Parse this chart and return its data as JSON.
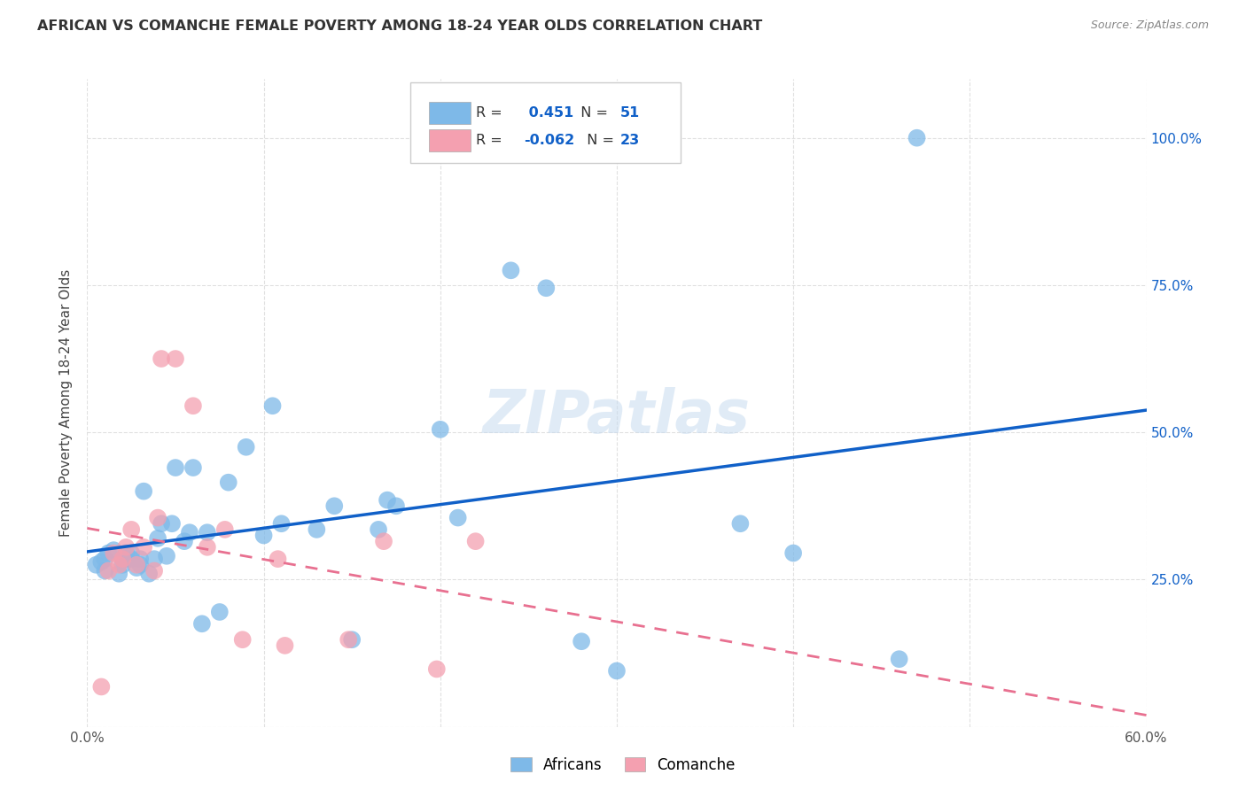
{
  "title": "AFRICAN VS COMANCHE FEMALE POVERTY AMONG 18-24 YEAR OLDS CORRELATION CHART",
  "source": "Source: ZipAtlas.com",
  "ylabel": "Female Poverty Among 18-24 Year Olds",
  "xlim": [
    0.0,
    0.6
  ],
  "ylim": [
    0.0,
    1.1
  ],
  "xticks": [
    0.0,
    0.1,
    0.2,
    0.3,
    0.4,
    0.5,
    0.6
  ],
  "xticklabels": [
    "0.0%",
    "",
    "",
    "",
    "",
    "",
    "60.0%"
  ],
  "yticks_right": [
    0.0,
    0.25,
    0.5,
    0.75,
    1.0
  ],
  "yticklabels_right": [
    "",
    "25.0%",
    "50.0%",
    "75.0%",
    "100.0%"
  ],
  "african_R": 0.451,
  "african_N": 51,
  "comanche_R": -0.062,
  "comanche_N": 23,
  "african_color": "#7EB9E8",
  "comanche_color": "#F4A0B0",
  "african_line_color": "#1060C8",
  "comanche_line_color": "#E87090",
  "watermark": "ZIPatlas",
  "african_points_x": [
    0.005,
    0.008,
    0.01,
    0.01,
    0.012,
    0.015,
    0.018,
    0.02,
    0.02,
    0.022,
    0.022,
    0.025,
    0.025,
    0.028,
    0.03,
    0.03,
    0.032,
    0.035,
    0.038,
    0.04,
    0.042,
    0.045,
    0.048,
    0.05,
    0.055,
    0.058,
    0.06,
    0.065,
    0.068,
    0.075,
    0.08,
    0.09,
    0.1,
    0.105,
    0.11,
    0.13,
    0.14,
    0.15,
    0.165,
    0.17,
    0.175,
    0.2,
    0.21,
    0.24,
    0.26,
    0.28,
    0.3,
    0.37,
    0.4,
    0.46,
    0.47
  ],
  "african_points_y": [
    0.275,
    0.28,
    0.265,
    0.285,
    0.295,
    0.3,
    0.26,
    0.275,
    0.285,
    0.285,
    0.295,
    0.285,
    0.295,
    0.27,
    0.275,
    0.285,
    0.4,
    0.26,
    0.285,
    0.32,
    0.345,
    0.29,
    0.345,
    0.44,
    0.315,
    0.33,
    0.44,
    0.175,
    0.33,
    0.195,
    0.415,
    0.475,
    0.325,
    0.545,
    0.345,
    0.335,
    0.375,
    0.148,
    0.335,
    0.385,
    0.375,
    0.505,
    0.355,
    0.775,
    0.745,
    0.145,
    0.095,
    0.345,
    0.295,
    0.115,
    1.0
  ],
  "comanche_points_x": [
    0.008,
    0.012,
    0.015,
    0.018,
    0.02,
    0.022,
    0.025,
    0.028,
    0.032,
    0.038,
    0.04,
    0.042,
    0.05,
    0.06,
    0.068,
    0.078,
    0.088,
    0.108,
    0.112,
    0.148,
    0.168,
    0.198,
    0.22
  ],
  "comanche_points_y": [
    0.068,
    0.265,
    0.295,
    0.275,
    0.285,
    0.305,
    0.335,
    0.275,
    0.305,
    0.265,
    0.355,
    0.625,
    0.625,
    0.545,
    0.305,
    0.335,
    0.148,
    0.285,
    0.138,
    0.148,
    0.315,
    0.098,
    0.315
  ],
  "background_color": "#FFFFFF",
  "grid_color": "#DDDDDD"
}
